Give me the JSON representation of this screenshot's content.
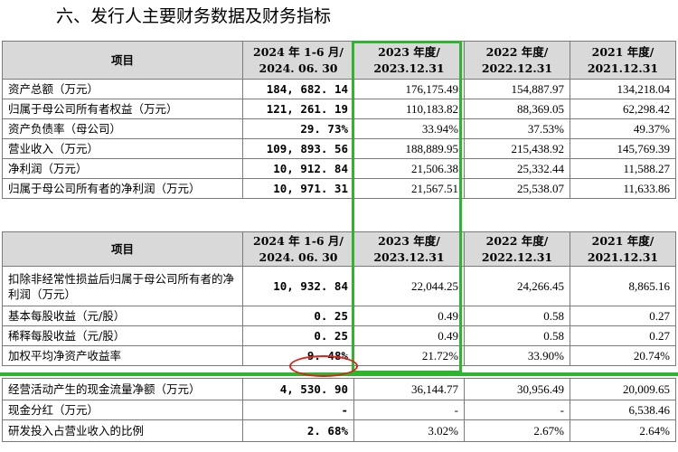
{
  "title": "六、发行人主要财务数据及财务指标",
  "headers": [
    "项目",
    "2024 年 1-6 月/\n2024. 06. 30",
    "2023 年度/\n2023.12.31",
    "2022 年度/\n2022.12.31",
    "2021 年度/\n2021.12.31"
  ],
  "table1": [
    {
      "label": "资产总额（万元）",
      "v": [
        "184, 682. 14",
        "176,175.49",
        "154,887.97",
        "134,218.04"
      ]
    },
    {
      "label": "归属于母公司所有者权益（万元）",
      "v": [
        "121, 261. 19",
        "110,183.82",
        "88,369.05",
        "62,298.42"
      ]
    },
    {
      "label": "资产负债率（母公司）",
      "v": [
        "29. 73%",
        "33.94%",
        "37.53%",
        "49.37%"
      ]
    },
    {
      "label": "营业收入（万元）",
      "v": [
        "109, 893. 56",
        "188,889.95",
        "215,438.92",
        "145,769.39"
      ]
    },
    {
      "label": "净利润（万元）",
      "v": [
        "10, 912. 84",
        "21,506.38",
        "25,332.44",
        "11,588.27"
      ]
    },
    {
      "label": "归属于母公司所有者的净利润（万元）",
      "v": [
        "10, 971. 31",
        "21,567.51",
        "25,538.07",
        "11,633.86"
      ]
    }
  ],
  "table2": [
    {
      "label": "扣除非经常性损益后归属于母公司所有者的净利润（万元）",
      "v": [
        "10, 932. 84",
        "22,044.25",
        "24,266.45",
        "8,865.16"
      ]
    },
    {
      "label": "基本每股收益（元/股）",
      "v": [
        "0. 25",
        "0.49",
        "0.58",
        "0.27"
      ]
    },
    {
      "label": "稀释每股收益（元/股）",
      "v": [
        "0. 25",
        "0.49",
        "0.58",
        "0.27"
      ]
    },
    {
      "label": "加权平均净资产收益率",
      "v": [
        "9. 48%",
        "21.72%",
        "33.90%",
        "20.74%"
      ]
    }
  ],
  "table3": [
    {
      "label": "经营活动产生的现金流量净额（万元）",
      "v": [
        "4, 530. 90",
        "36,144.77",
        "30,956.49",
        "20,009.65"
      ]
    },
    {
      "label": "现金分红（万元）",
      "v": [
        "-",
        "-",
        "-",
        "6,538.46"
      ]
    },
    {
      "label": "研发投入占营业收入的比例",
      "v": [
        "2. 68%",
        "3.02%",
        "2.67%",
        "2.64%"
      ]
    }
  ],
  "annotations": {
    "highlight_color": "#2db52d",
    "circle_color": "#e0201b"
  }
}
